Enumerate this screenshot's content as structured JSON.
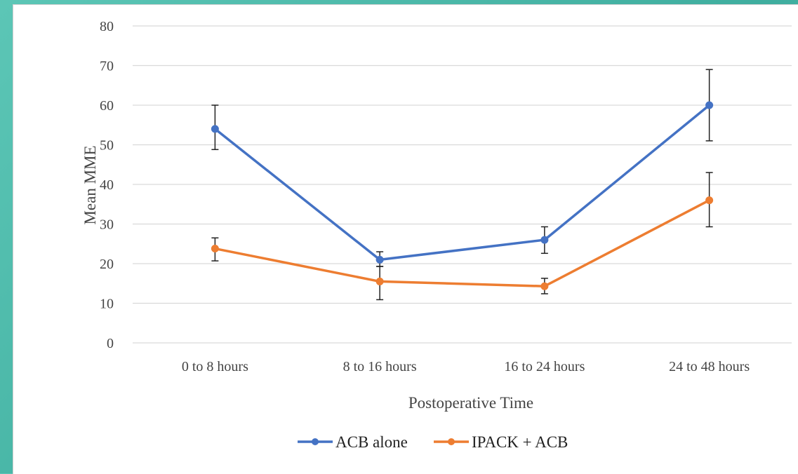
{
  "chart_data": {
    "type": "line",
    "title": "",
    "xlabel": "Postoperative Time",
    "ylabel": "Mean MME",
    "categories": [
      "0 to 8 hours",
      "8 to 16 hours",
      "16 to 24 hours",
      "24 to 48 hours"
    ],
    "ylim": [
      0,
      80
    ],
    "yticks": [
      "0",
      "10",
      "20",
      "30",
      "40",
      "50",
      "60",
      "70",
      "80"
    ],
    "grid": true,
    "legend_position": "bottom",
    "series": [
      {
        "name": "ACB alone",
        "color": "#4472C4",
        "values": [
          54,
          21,
          26,
          60
        ],
        "error_low": [
          48.8,
          19.3,
          22.6,
          51
        ],
        "error_high": [
          60,
          23,
          29.3,
          69
        ]
      },
      {
        "name": "IPACK + ACB",
        "color": "#ED7D31",
        "values": [
          23.8,
          15.5,
          14.3,
          36
        ],
        "error_low": [
          20.7,
          10.9,
          12.4,
          29.3
        ],
        "error_high": [
          26.5,
          19.3,
          16.3,
          43
        ]
      }
    ]
  }
}
